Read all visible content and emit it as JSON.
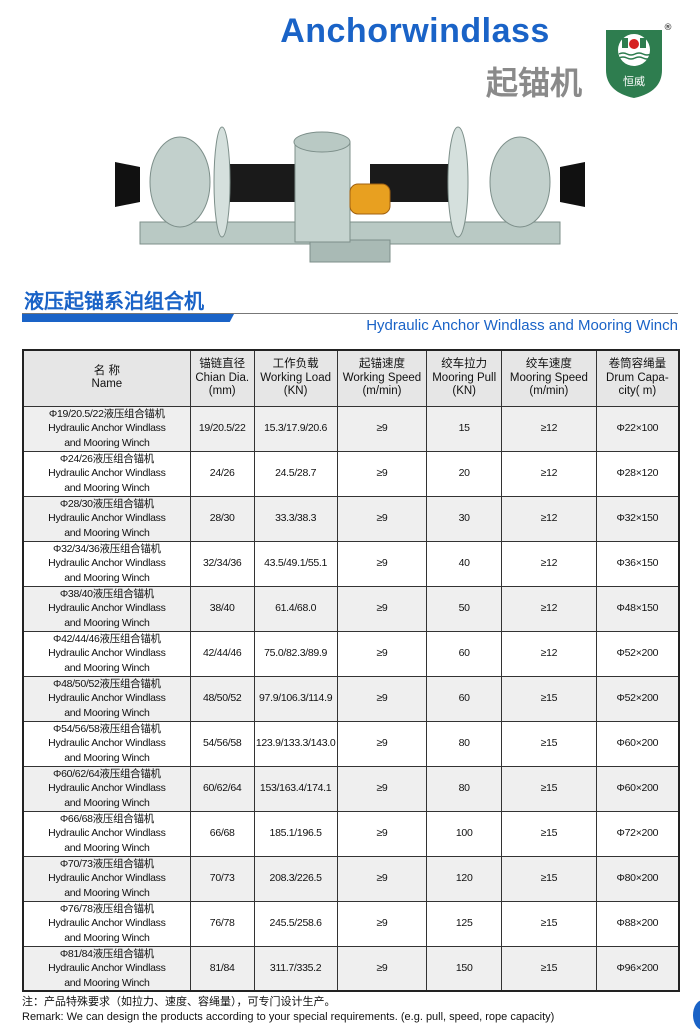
{
  "header": {
    "title": "Anchorwindlass",
    "title_cn": "起锚机",
    "logo_text": "恒威",
    "registered": "®",
    "brand_color": "#1a63c7",
    "logo_color": "#2e7d4f"
  },
  "section": {
    "title_cn": "液压起锚系泊组合机",
    "title_en": "Hydraulic Anchor Windlass and Mooring Winch"
  },
  "table": {
    "headers": [
      {
        "cn": "名 称",
        "en": "Name",
        "unit": ""
      },
      {
        "cn": "锚链直径",
        "en": "Chian Dia.",
        "unit": "(mm)"
      },
      {
        "cn": "工作负载",
        "en": "Working Load",
        "unit": "(KN)"
      },
      {
        "cn": "起锚速度",
        "en": "Working Speed",
        "unit": "(m/min)"
      },
      {
        "cn": "绞车拉力",
        "en": "Mooring Pull",
        "unit": "(KN)"
      },
      {
        "cn": "绞车速度",
        "en": "Mooring Speed",
        "unit": "(m/min)"
      },
      {
        "cn": "卷筒容绳量",
        "en": "Drum Capa-",
        "unit": "city( m)"
      }
    ],
    "rows": [
      {
        "cn": "Φ19/20.5/22液压组合锚机",
        "en1": "Hydraulic Anchor Windlass",
        "en2": "and Mooring Winch",
        "dia": "19/20.5/22",
        "load": "15.3/17.9/20.6",
        "speed": "≥9",
        "pull": "15",
        "mspeed": "≥12",
        "drum": "Φ22×100"
      },
      {
        "cn": "Φ24/26液压组合锚机",
        "en1": "Hydraulic Anchor Windlass",
        "en2": "and Mooring Winch",
        "dia": "24/26",
        "load": "24.5/28.7",
        "speed": "≥9",
        "pull": "20",
        "mspeed": "≥12",
        "drum": "Φ28×120"
      },
      {
        "cn": "Φ28/30液压组合锚机",
        "en1": "Hydraulic Anchor Windlass",
        "en2": "and Mooring Winch",
        "dia": "28/30",
        "load": "33.3/38.3",
        "speed": "≥9",
        "pull": "30",
        "mspeed": "≥12",
        "drum": "Φ32×150"
      },
      {
        "cn": "Φ32/34/36液压组合锚机",
        "en1": "Hydraulic Anchor Windlass",
        "en2": "and Mooring Winch",
        "dia": "32/34/36",
        "load": "43.5/49.1/55.1",
        "speed": "≥9",
        "pull": "40",
        "mspeed": "≥12",
        "drum": "Φ36×150"
      },
      {
        "cn": "Φ38/40液压组合锚机",
        "en1": "Hydraulic Anchor Windlass",
        "en2": "and Mooring Winch",
        "dia": "38/40",
        "load": "61.4/68.0",
        "speed": "≥9",
        "pull": "50",
        "mspeed": "≥12",
        "drum": "Φ48×150"
      },
      {
        "cn": "Φ42/44/46液压组合锚机",
        "en1": "Hydraulic Anchor Windlass",
        "en2": "and Mooring Winch",
        "dia": "42/44/46",
        "load": "75.0/82.3/89.9",
        "speed": "≥9",
        "pull": "60",
        "mspeed": "≥12",
        "drum": "Φ52×200"
      },
      {
        "cn": "Φ48/50/52液压组合锚机",
        "en1": "Hydraulic Anchor Windlass",
        "en2": "and Mooring Winch",
        "dia": "48/50/52",
        "load": "97.9/106.3/114.9",
        "speed": "≥9",
        "pull": "60",
        "mspeed": "≥15",
        "drum": "Φ52×200"
      },
      {
        "cn": "Φ54/56/58液压组合锚机",
        "en1": "Hydraulic Anchor Windlass",
        "en2": "and Mooring Winch",
        "dia": "54/56/58",
        "load": "123.9/133.3/143.0",
        "speed": "≥9",
        "pull": "80",
        "mspeed": "≥15",
        "drum": "Φ60×200"
      },
      {
        "cn": "Φ60/62/64液压组合锚机",
        "en1": "Hydraulic Anchor Windlass",
        "en2": "and Mooring Winch",
        "dia": "60/62/64",
        "load": "153/163.4/174.1",
        "speed": "≥9",
        "pull": "80",
        "mspeed": "≥15",
        "drum": "Φ60×200"
      },
      {
        "cn": "Φ66/68液压组合锚机",
        "en1": "Hydraulic Anchor Windlass",
        "en2": "and Mooring Winch",
        "dia": "66/68",
        "load": "185.1/196.5",
        "speed": "≥9",
        "pull": "100",
        "mspeed": "≥15",
        "drum": "Φ72×200"
      },
      {
        "cn": "Φ70/73液压组合锚机",
        "en1": "Hydraulic Anchor Windlass",
        "en2": "and Mooring Winch",
        "dia": "70/73",
        "load": "208.3/226.5",
        "speed": "≥9",
        "pull": "120",
        "mspeed": "≥15",
        "drum": "Φ80×200"
      },
      {
        "cn": "Φ76/78液压组合锚机",
        "en1": "Hydraulic Anchor Windlass",
        "en2": "and Mooring Winch",
        "dia": "76/78",
        "load": "245.5/258.6",
        "speed": "≥9",
        "pull": "125",
        "mspeed": "≥15",
        "drum": "Φ88×200"
      },
      {
        "cn": "Φ81/84液压组合锚机",
        "en1": "Hydraulic Anchor Windlass",
        "en2": "and Mooring Winch",
        "dia": "81/84",
        "load": "311.7/335.2",
        "speed": "≥9",
        "pull": "150",
        "mspeed": "≥15",
        "drum": "Φ96×200"
      }
    ]
  },
  "notes": {
    "cn": "注：产品特殊要求（如拉力、速度、容绳量），可专门设计生产。",
    "en": "Remark: We can design the products according to your special requirements. (e.g. pull, speed, rope capacity)"
  }
}
